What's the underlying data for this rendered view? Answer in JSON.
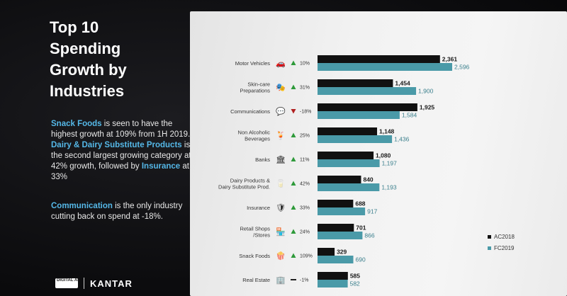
{
  "title_lines": [
    "Top 10",
    "Spending",
    "Growth by",
    "Industries"
  ],
  "paragraph1": {
    "parts": [
      {
        "text": "Snack Foods",
        "hl": true
      },
      {
        "text": " is seen to have the highest growth at 109% from 1H 2019. ",
        "hl": false
      },
      {
        "text": "Dairy & Dairy Substitute Products",
        "hl": true
      },
      {
        "text": " is the second largest growing category at 42% growth, followed by ",
        "hl": false
      },
      {
        "text": "Insurance",
        "hl": true
      },
      {
        "text": " at 33%",
        "hl": false
      }
    ]
  },
  "paragraph2": {
    "parts": [
      {
        "text": "Communication",
        "hl": true
      },
      {
        "text": " is the only industry cutting back on spend at -18%.",
        "hl": false
      }
    ]
  },
  "brand": {
    "logo_text": "DIGITAL ADVERTISING",
    "name": "KANTAR"
  },
  "colors": {
    "ac2018": "#111111",
    "fc2019": "#4a9aa8",
    "up": "#2e9a3a",
    "down": "#b02020",
    "highlight": "#55b8e8"
  },
  "chart_data": {
    "type": "bar",
    "orientation": "horizontal",
    "categories": [
      "Motor Vehicles",
      "Skin-care Preparations",
      "Communications",
      "Non Alcoholic Beverages",
      "Banks",
      "Dairy Products & Dairy Substitute Prod.",
      "Insurance",
      "Retail Shops /Stores",
      "Snack Foods",
      "Real Estate"
    ],
    "category_lines": [
      [
        "Motor Vehicles"
      ],
      [
        "Skin-care",
        "Preparations"
      ],
      [
        "Communications"
      ],
      [
        "Non Alcoholic",
        "Beverages"
      ],
      [
        "Banks"
      ],
      [
        "Dairy Products &",
        "Dairy Substitute Prod."
      ],
      [
        "Insurance"
      ],
      [
        "Retail Shops",
        "/Stores"
      ],
      [
        "Snack Foods"
      ],
      [
        "Real Estate"
      ]
    ],
    "icons": [
      "car-icon",
      "mask-icon",
      "chat-icon",
      "drink-icon",
      "bank-icon",
      "milk-icon",
      "shield-icon",
      "store-icon",
      "popcorn-icon",
      "building-icon"
    ],
    "growth": [
      "10%",
      "31%",
      "-18%",
      "25%",
      "11%",
      "42%",
      "33%",
      "24%",
      "109%",
      "-1%"
    ],
    "trend": [
      "up",
      "up",
      "down",
      "up",
      "up",
      "up",
      "up",
      "up",
      "up",
      "flat"
    ],
    "series": [
      {
        "name": "AC2018",
        "values": [
          2361,
          1454,
          1925,
          1148,
          1080,
          840,
          688,
          701,
          329,
          585
        ]
      },
      {
        "name": "FC2019",
        "values": [
          2596,
          1900,
          1584,
          1436,
          1197,
          1193,
          917,
          866,
          690,
          582
        ]
      }
    ],
    "value_labels": [
      [
        "2,361",
        "1,454",
        "1,925",
        "1,148",
        "1,080",
        "840",
        "688",
        "701",
        "329",
        "585"
      ],
      [
        "2,596",
        "1,900",
        "1,584",
        "1,436",
        "1,197",
        "1,193",
        "917",
        "866",
        "690",
        "582"
      ]
    ],
    "legend": [
      "AC2018",
      "FC2019"
    ],
    "legend_position": "bottom-right",
    "xlim": [
      0,
      2596
    ],
    "grid": false
  }
}
